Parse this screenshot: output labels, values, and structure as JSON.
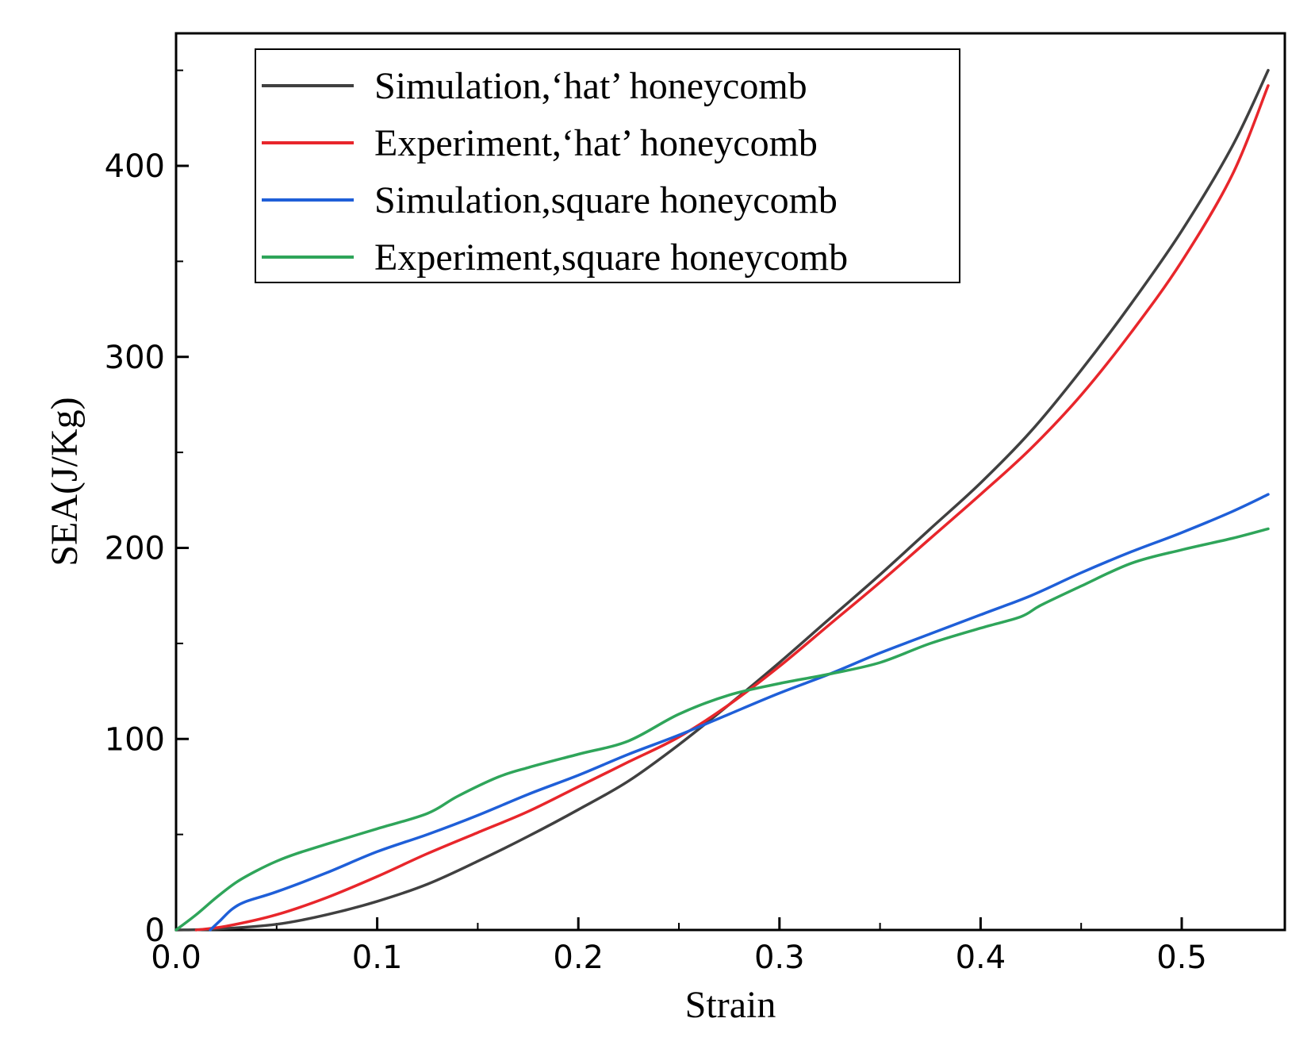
{
  "chart_data": {
    "type": "line",
    "title": "",
    "xlabel": "Strain",
    "ylabel": "SEA(J/Kg)",
    "xlim": [
      0.0,
      0.55
    ],
    "ylim": [
      0,
      470
    ],
    "xticks": [
      0.0,
      0.1,
      0.2,
      0.3,
      0.4,
      0.5
    ],
    "xtick_labels": [
      "0.0",
      "0.1",
      "0.2",
      "0.3",
      "0.4",
      "0.5"
    ],
    "yticks": [
      0,
      100,
      200,
      300,
      400
    ],
    "ytick_labels": [
      "0",
      "100",
      "200",
      "300",
      "400"
    ],
    "grid": false,
    "legend_position": "top-left",
    "series": [
      {
        "name": "Simulation,‘hat’ honeycomb",
        "color": "#404040",
        "x": [
          0.0,
          0.02,
          0.05,
          0.075,
          0.1,
          0.125,
          0.15,
          0.175,
          0.2,
          0.225,
          0.25,
          0.275,
          0.3,
          0.325,
          0.35,
          0.375,
          0.4,
          0.425,
          0.45,
          0.475,
          0.5,
          0.525,
          0.543
        ],
        "y": [
          0,
          0.5,
          3,
          8,
          15,
          24,
          36,
          49,
          63,
          78,
          97,
          118,
          140,
          163,
          186,
          210,
          234,
          261,
          293,
          328,
          366,
          410,
          450
        ]
      },
      {
        "name": "Experiment,‘hat’ honeycomb",
        "color": "#e8262b",
        "x": [
          0.01,
          0.025,
          0.05,
          0.075,
          0.1,
          0.125,
          0.15,
          0.175,
          0.2,
          0.225,
          0.25,
          0.275,
          0.3,
          0.325,
          0.35,
          0.375,
          0.4,
          0.425,
          0.45,
          0.475,
          0.5,
          0.525,
          0.543
        ],
        "y": [
          0,
          2,
          8,
          17,
          28,
          40,
          51,
          62,
          75,
          88,
          101,
          118,
          138,
          160,
          182,
          205,
          228,
          252,
          280,
          313,
          350,
          395,
          442
        ]
      },
      {
        "name": "Simulation,square honeycomb",
        "color": "#1f5fd8",
        "x": [
          0.017,
          0.022,
          0.028,
          0.035,
          0.05,
          0.075,
          0.1,
          0.125,
          0.15,
          0.175,
          0.2,
          0.225,
          0.25,
          0.275,
          0.3,
          0.325,
          0.35,
          0.375,
          0.4,
          0.425,
          0.45,
          0.475,
          0.5,
          0.525,
          0.543
        ],
        "y": [
          0,
          5,
          11,
          15,
          20,
          30,
          41,
          50,
          60,
          71,
          81,
          92,
          102,
          113,
          124,
          134,
          145,
          155,
          165,
          175,
          187,
          198,
          208,
          219,
          228
        ]
      },
      {
        "name": "Experiment,square honeycomb",
        "color": "#2fa55a",
        "x": [
          0.0,
          0.01,
          0.02,
          0.03,
          0.04,
          0.05,
          0.06,
          0.075,
          0.1,
          0.125,
          0.14,
          0.16,
          0.175,
          0.2,
          0.225,
          0.25,
          0.275,
          0.3,
          0.325,
          0.35,
          0.375,
          0.4,
          0.42,
          0.43,
          0.45,
          0.475,
          0.5,
          0.525,
          0.543
        ],
        "y": [
          0,
          8,
          17,
          25,
          31,
          36,
          40,
          45,
          53,
          61,
          70,
          80,
          85,
          92,
          99,
          113,
          123,
          129,
          134,
          140,
          150,
          158,
          164,
          170,
          180,
          192,
          199,
          205,
          210
        ]
      }
    ]
  }
}
